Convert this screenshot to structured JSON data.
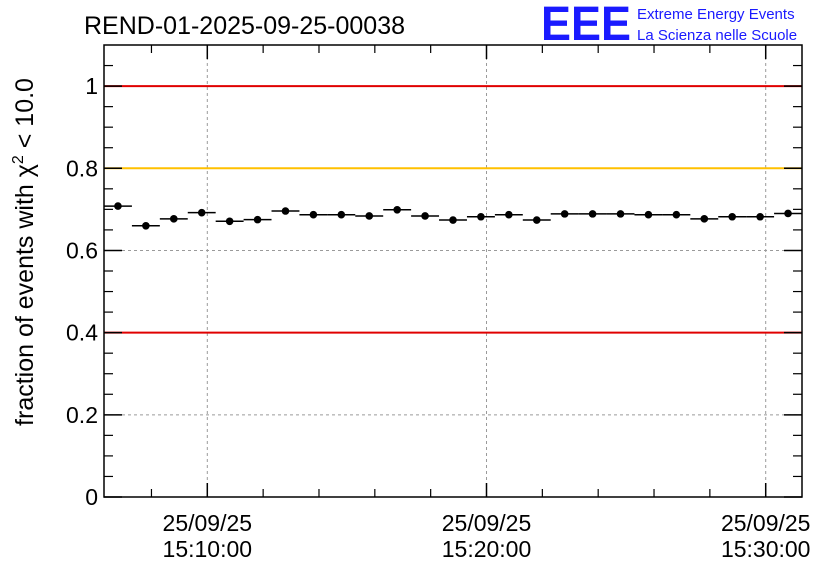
{
  "chart_data": {
    "type": "scatter",
    "title": "REND-01-2025-09-25-00038",
    "ylabel_prefix": "fraction of events with ",
    "ylabel_symbol": "χ",
    "ylabel_exponent": "2",
    "ylabel_suffix": " < 10.0",
    "xlabel": "",
    "ylim": [
      0,
      1.1
    ],
    "xlim_minutes": [
      6.3,
      31.3
    ],
    "y_ticks": [
      0,
      0.2,
      0.4,
      0.6,
      0.8,
      1
    ],
    "y_tick_labels": [
      "0",
      "0.2",
      "0.4",
      "0.6",
      "0.8",
      "1"
    ],
    "x_ticks": [
      {
        "minute": 10,
        "date": "25/09/25",
        "time": "15:10:00"
      },
      {
        "minute": 20,
        "date": "25/09/25",
        "time": "15:20:00"
      },
      {
        "minute": 30,
        "date": "25/09/25",
        "time": "15:30:00"
      }
    ],
    "bin_width_minutes": 1,
    "x_minutes": [
      6.8,
      7.8,
      8.8,
      9.8,
      10.8,
      11.8,
      12.8,
      13.8,
      14.8,
      15.8,
      16.8,
      17.8,
      18.8,
      19.8,
      20.8,
      21.8,
      22.8,
      23.8,
      24.8,
      25.8,
      26.8,
      27.8,
      28.8,
      29.8,
      30.8
    ],
    "y_values": [
      0.708,
      0.66,
      0.677,
      0.692,
      0.671,
      0.675,
      0.696,
      0.687,
      0.687,
      0.684,
      0.699,
      0.684,
      0.674,
      0.682,
      0.687,
      0.674,
      0.689,
      0.689,
      0.689,
      0.687,
      0.687,
      0.677,
      0.682,
      0.682,
      0.69
    ],
    "reference_lines": [
      {
        "y": 1.0,
        "color": "#e00000"
      },
      {
        "y": 0.8,
        "color": "#ffc000"
      },
      {
        "y": 0.4,
        "color": "#e00000"
      }
    ],
    "grid": true
  },
  "logo": {
    "letters": "EEE",
    "line1": "Extreme Energy Events",
    "line2": "La Scienza nelle Scuole",
    "color": "#1a1aff"
  }
}
